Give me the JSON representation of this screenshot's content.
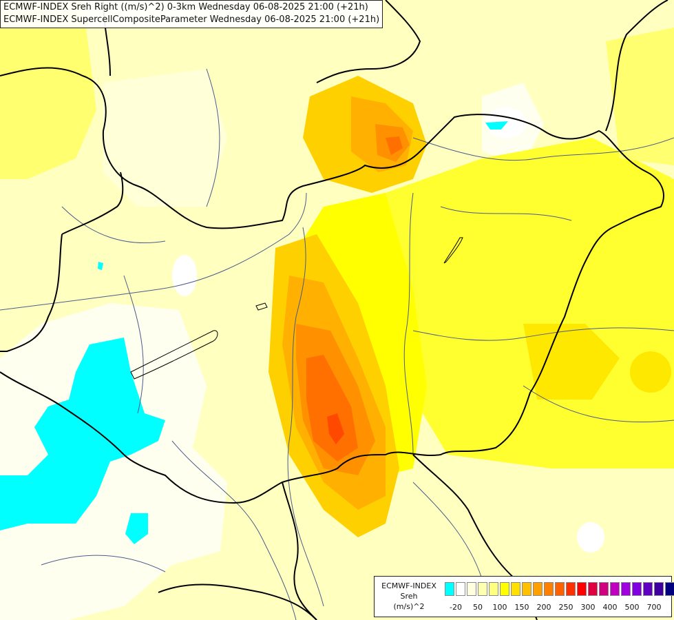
{
  "titles": {
    "line1": "ECMWF-INDEX Sreh Right ((m/s)^2) 0-3km Wednesday 06-08-2025 21:00 (+21h)",
    "line2": "ECMWF-INDEX SupercellCompositeParameter Wednesday 06-08-2025 21:00 (+21h)"
  },
  "legend": {
    "label_line1": "ECMWF-INDEX",
    "label_line2": "Sreh",
    "label_line3": "(m/s)^2",
    "colors": [
      "#00ffff",
      "#ffffff",
      "#ffffe0",
      "#ffffb0",
      "#ffff80",
      "#ffff00",
      "#ffe000",
      "#ffc000",
      "#ffa000",
      "#ff8000",
      "#ff6000",
      "#ff3000",
      "#ff0000",
      "#e00040",
      "#d00080",
      "#c000c0",
      "#a000e0",
      "#8000e0",
      "#6000c0",
      "#4000a0",
      "#000080"
    ],
    "ticks": [
      "-20",
      "50",
      "100",
      "150",
      "200",
      "250",
      "300",
      "400",
      "500",
      "700"
    ]
  },
  "colors": {
    "background": "#ffffe0",
    "border_lines": "#000000",
    "river_lines": "#4a5a8a",
    "low_negative": "#00ffff"
  }
}
